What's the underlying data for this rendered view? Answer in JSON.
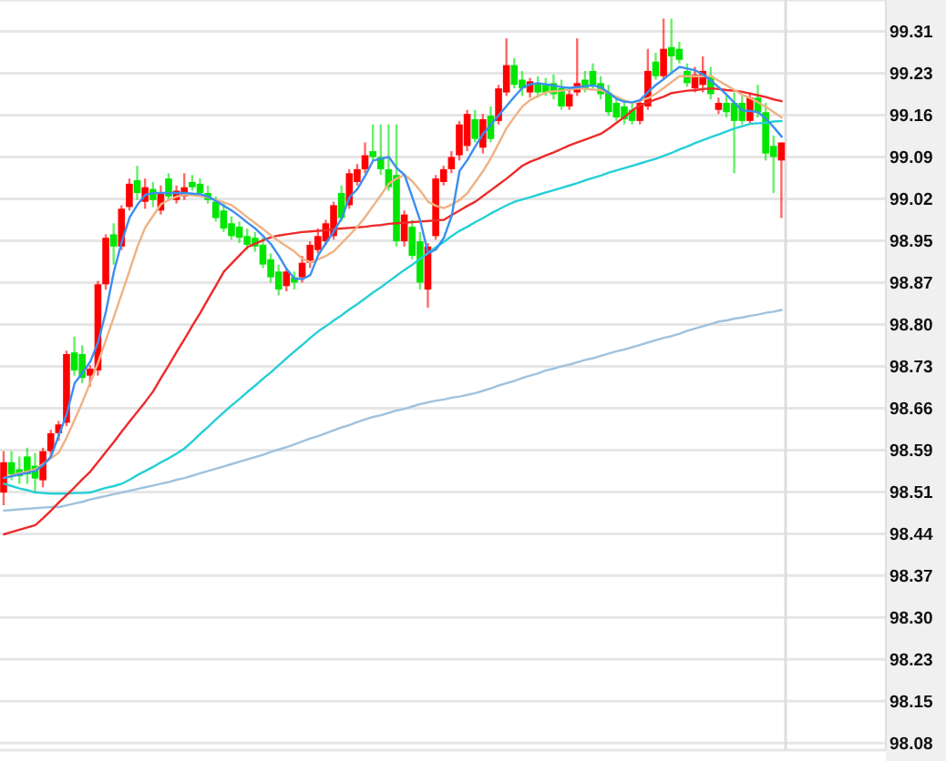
{
  "chart_data": {
    "type": "candlestick",
    "categories": [
      null,
      null,
      null,
      null,
      null,
      null,
      null,
      null,
      null,
      null,
      null,
      null,
      null,
      null,
      null,
      null,
      null,
      null,
      null,
      null,
      null,
      null,
      null,
      null,
      null,
      null,
      null,
      null,
      null,
      null,
      null,
      null,
      null,
      null,
      null,
      null,
      null,
      null,
      null,
      null,
      null,
      null,
      null,
      null,
      null,
      null,
      null,
      null,
      null,
      null,
      null,
      null,
      null,
      null,
      null,
      null,
      null,
      null,
      null,
      null,
      null,
      null,
      null,
      null,
      null,
      null,
      null,
      null,
      null,
      null,
      null,
      null,
      null,
      null,
      null,
      null,
      null,
      null,
      null,
      null,
      null,
      null,
      null,
      null,
      null,
      null,
      null,
      null,
      null,
      null,
      null,
      null,
      null,
      null,
      null,
      null,
      null,
      null,
      null,
      null
    ],
    "ohlc": [
      [
        98.513,
        98.584,
        98.491,
        98.565
      ],
      [
        98.565,
        98.584,
        98.534,
        98.544
      ],
      [
        98.553,
        98.575,
        98.528,
        98.541
      ],
      [
        98.575,
        98.59,
        98.528,
        98.544
      ],
      [
        98.559,
        98.581,
        98.513,
        98.537
      ],
      [
        98.534,
        98.59,
        98.522,
        98.584
      ],
      [
        98.584,
        98.621,
        98.575,
        98.615
      ],
      [
        98.615,
        98.636,
        98.602,
        98.63
      ],
      [
        98.633,
        98.757,
        98.627,
        98.751
      ],
      [
        98.754,
        98.781,
        98.714,
        98.723
      ],
      [
        98.751,
        98.766,
        98.701,
        98.71
      ],
      [
        98.714,
        98.732,
        98.695,
        98.726
      ],
      [
        98.723,
        98.877,
        98.714,
        98.871
      ],
      [
        98.871,
        98.957,
        98.862,
        98.951
      ],
      [
        98.957,
        98.976,
        98.905,
        98.936
      ],
      [
        98.936,
        99.007,
        98.93,
        99.001
      ],
      [
        99.004,
        99.053,
        98.998,
        99.044
      ],
      [
        99.05,
        99.075,
        99.016,
        99.028
      ],
      [
        99.013,
        99.053,
        99.001,
        99.038
      ],
      [
        99.035,
        99.047,
        99.004,
        99.016
      ],
      [
        98.998,
        99.041,
        98.991,
        99.028
      ],
      [
        99.053,
        99.062,
        99.016,
        99.022
      ],
      [
        99.016,
        99.041,
        99.01,
        99.032
      ],
      [
        99.022,
        99.062,
        99.016,
        99.038
      ],
      [
        99.047,
        99.059,
        99.032,
        99.038
      ],
      [
        99.044,
        99.053,
        99.022,
        99.028
      ],
      [
        99.028,
        99.041,
        99.01,
        99.016
      ],
      [
        99.013,
        99.022,
        98.979,
        98.985
      ],
      [
        98.998,
        99.01,
        98.961,
        98.967
      ],
      [
        98.976,
        98.988,
        98.948,
        98.954
      ],
      [
        98.97,
        98.979,
        98.942,
        98.951
      ],
      [
        98.954,
        98.967,
        98.93,
        98.939
      ],
      [
        98.951,
        98.961,
        98.927,
        98.936
      ],
      [
        98.939,
        98.951,
        98.899,
        98.905
      ],
      [
        98.914,
        98.924,
        98.874,
        98.883
      ],
      [
        98.893,
        98.905,
        98.852,
        98.862
      ],
      [
        98.868,
        98.899,
        98.859,
        98.893
      ],
      [
        98.883,
        98.893,
        98.862,
        98.874
      ],
      [
        98.883,
        98.92,
        98.874,
        98.908
      ],
      [
        98.908,
        98.945,
        98.899,
        98.939
      ],
      [
        98.93,
        98.967,
        98.924,
        98.954
      ],
      [
        98.945,
        98.982,
        98.939,
        98.976
      ],
      [
        98.954,
        99.013,
        98.948,
        99.007
      ],
      [
        99.028,
        99.041,
        98.979,
        98.985
      ],
      [
        99.007,
        99.069,
        99.001,
        99.062
      ],
      [
        99.047,
        99.078,
        99.041,
        99.069
      ],
      [
        99.069,
        99.115,
        99.062,
        99.093
      ],
      [
        99.1,
        99.146,
        99.084,
        99.09
      ],
      [
        99.09,
        99.146,
        99.059,
        99.069
      ],
      [
        99.069,
        99.146,
        99.032,
        99.038
      ],
      [
        99.059,
        99.146,
        98.936,
        98.945
      ],
      [
        98.945,
        98.998,
        98.936,
        98.991
      ],
      [
        98.97,
        98.982,
        98.914,
        98.92
      ],
      [
        98.945,
        98.961,
        98.862,
        98.874
      ],
      [
        98.862,
        98.942,
        98.831,
        98.936
      ],
      [
        98.954,
        99.059,
        98.948,
        99.053
      ],
      [
        99.047,
        99.075,
        99.041,
        99.069
      ],
      [
        99.069,
        99.1,
        99.062,
        99.09
      ],
      [
        99.093,
        99.152,
        99.084,
        99.146
      ],
      [
        99.109,
        99.171,
        99.1,
        99.164
      ],
      [
        99.155,
        99.171,
        99.115,
        99.121
      ],
      [
        99.106,
        99.164,
        99.096,
        99.155
      ],
      [
        99.161,
        99.177,
        99.115,
        99.121
      ],
      [
        99.152,
        99.214,
        99.146,
        99.208
      ],
      [
        99.201,
        99.294,
        99.195,
        99.248
      ],
      [
        99.248,
        99.26,
        99.208,
        99.214
      ],
      [
        99.223,
        99.238,
        99.195,
        99.208
      ],
      [
        99.201,
        99.226,
        99.192,
        99.22
      ],
      [
        99.217,
        99.229,
        99.192,
        99.201
      ],
      [
        99.214,
        99.226,
        99.195,
        99.201
      ],
      [
        99.217,
        99.232,
        99.189,
        99.198
      ],
      [
        99.208,
        99.223,
        99.171,
        99.177
      ],
      [
        99.177,
        99.208,
        99.171,
        99.198
      ],
      [
        99.201,
        99.294,
        99.195,
        99.217
      ],
      [
        99.223,
        99.238,
        99.201,
        99.208
      ],
      [
        99.238,
        99.251,
        99.208,
        99.214
      ],
      [
        99.217,
        99.229,
        99.189,
        99.198
      ],
      [
        99.201,
        99.214,
        99.161,
        99.167
      ],
      [
        99.183,
        99.195,
        99.152,
        99.158
      ],
      [
        99.177,
        99.189,
        99.146,
        99.155
      ],
      [
        99.171,
        99.183,
        99.146,
        99.152
      ],
      [
        99.152,
        99.189,
        99.146,
        99.183
      ],
      [
        99.177,
        99.276,
        99.171,
        99.238
      ],
      [
        99.254,
        99.269,
        99.223,
        99.229
      ],
      [
        99.229,
        99.328,
        99.223,
        99.276
      ],
      [
        99.279,
        99.328,
        99.232,
        99.263
      ],
      [
        99.276,
        99.288,
        99.251,
        99.257
      ],
      [
        99.238,
        99.251,
        99.211,
        99.217
      ],
      [
        99.208,
        99.245,
        99.201,
        99.232
      ],
      [
        99.214,
        99.263,
        99.201,
        99.238
      ],
      [
        99.229,
        99.245,
        99.189,
        99.198
      ],
      [
        99.171,
        99.192,
        99.164,
        99.183
      ],
      [
        99.183,
        99.195,
        99.158,
        99.167
      ],
      [
        99.183,
        99.201,
        99.062,
        99.152
      ],
      [
        99.183,
        99.195,
        99.146,
        99.152
      ],
      [
        99.152,
        99.201,
        99.146,
        99.192
      ],
      [
        99.192,
        99.214,
        99.158,
        99.167
      ],
      [
        99.167,
        99.183,
        99.084,
        99.096
      ],
      [
        99.109,
        99.127,
        99.028,
        99.09
      ],
      [
        99.084,
        99.115,
        98.985,
        99.115
      ]
    ],
    "colors": [
      "#ff0000",
      "#00e600",
      "#00e600",
      "#00e600",
      "#00e600",
      "#ff0000",
      "#ff0000",
      "#ff0000",
      "#ff0000",
      "#00e600",
      "#00e600",
      "#ff0000",
      "#ff0000",
      "#ff0000",
      "#00e600",
      "#ff0000",
      "#ff0000",
      "#00e600",
      "#ff0000",
      "#00e600",
      "#ff0000",
      "#00e600",
      "#ff0000",
      "#ff0000",
      "#00e600",
      "#00e600",
      "#00e600",
      "#00e600",
      "#00e600",
      "#00e600",
      "#00e600",
      "#00e600",
      "#00e600",
      "#00e600",
      "#00e600",
      "#00e600",
      "#ff0000",
      "#00e600",
      "#ff0000",
      "#ff0000",
      "#ff0000",
      "#ff0000",
      "#ff0000",
      "#00e600",
      "#ff0000",
      "#ff0000",
      "#ff0000",
      "#00e600",
      "#00e600",
      "#00e600",
      "#00e600",
      "#ff0000",
      "#00e600",
      "#00e600",
      "#ff0000",
      "#ff0000",
      "#ff0000",
      "#ff0000",
      "#ff0000",
      "#ff0000",
      "#00e600",
      "#ff0000",
      "#00e600",
      "#ff0000",
      "#ff0000",
      "#00e600",
      "#00e600",
      "#ff0000",
      "#00e600",
      "#00e600",
      "#00e600",
      "#00e600",
      "#ff0000",
      "#ff0000",
      "#00e600",
      "#00e600",
      "#00e600",
      "#00e600",
      "#00e600",
      "#00e600",
      "#00e600",
      "#ff0000",
      "#ff0000",
      "#00e600",
      "#ff0000",
      "#00e600",
      "#00e600",
      "#00e600",
      "#ff0000",
      "#ff0000",
      "#00e600",
      "#ff0000",
      "#00e600",
      "#00e600",
      "#00e600",
      "#ff0000",
      "#00e600",
      "#00e600",
      "#00e600",
      "#ff0000"
    ],
    "series": [
      {
        "type": "line",
        "color": "#9fc2de",
        "values": [
          98.482,
          98.483,
          98.484,
          98.485,
          98.486,
          98.487,
          98.488,
          98.488,
          98.491,
          98.494,
          98.497,
          98.501,
          98.504,
          98.507,
          98.51,
          98.513,
          98.516,
          98.519,
          98.522,
          98.525,
          98.528,
          98.531,
          98.535,
          98.538,
          98.542,
          98.546,
          98.55,
          98.554,
          98.558,
          98.562,
          98.566,
          98.57,
          98.574,
          98.578,
          98.583,
          98.587,
          98.591,
          98.596,
          98.601,
          98.606,
          98.61,
          98.615,
          98.62,
          98.625,
          98.629,
          98.634,
          98.639,
          98.643,
          98.646,
          98.65,
          98.654,
          98.657,
          98.661,
          98.665,
          98.668,
          98.671,
          98.673,
          98.676,
          98.678,
          98.681,
          98.684,
          98.688,
          98.692,
          98.697,
          98.701,
          98.705,
          98.71,
          98.714,
          98.718,
          98.723,
          98.726,
          98.73,
          98.733,
          98.737,
          98.741,
          98.744,
          98.748,
          98.752,
          98.756,
          98.759,
          98.763,
          98.767,
          98.771,
          98.775,
          98.779,
          98.782,
          98.786,
          98.791,
          98.795,
          98.799,
          98.803,
          98.807,
          98.809,
          98.812,
          98.814,
          98.817,
          98.819,
          98.822,
          98.824,
          98.827
        ]
      },
      {
        "type": "line",
        "color": "#25cfd6",
        "values": [
          98.528,
          98.524,
          98.52,
          98.517,
          98.513,
          98.512,
          98.511,
          98.511,
          98.511,
          98.512,
          98.512,
          98.513,
          98.517,
          98.521,
          98.524,
          98.528,
          98.535,
          98.543,
          98.55,
          98.557,
          98.565,
          98.572,
          98.58,
          98.589,
          98.601,
          98.614,
          98.626,
          98.639,
          98.651,
          98.663,
          98.674,
          98.686,
          98.697,
          98.709,
          98.72,
          98.732,
          98.744,
          98.756,
          98.767,
          98.779,
          98.79,
          98.799,
          98.809,
          98.818,
          98.828,
          98.837,
          98.847,
          98.857,
          98.866,
          98.876,
          98.886,
          98.896,
          98.905,
          98.915,
          98.925,
          98.935,
          98.944,
          98.954,
          98.963,
          98.97,
          98.978,
          98.985,
          98.993,
          99.0,
          99.007,
          99.013,
          99.017,
          99.021,
          99.025,
          99.029,
          99.033,
          99.037,
          99.041,
          99.045,
          99.05,
          99.054,
          99.058,
          99.063,
          99.067,
          99.071,
          99.075,
          99.079,
          99.083,
          99.087,
          99.092,
          99.097,
          99.103,
          99.108,
          99.114,
          99.119,
          99.124,
          99.129,
          99.134,
          99.139,
          99.143,
          99.147,
          99.148,
          99.149,
          99.151,
          99.152
        ]
      },
      {
        "type": "line",
        "color": "#ee2a2a",
        "values": [
          98.441,
          98.445,
          98.449,
          98.453,
          98.457,
          98.469,
          98.482,
          98.496,
          98.509,
          98.522,
          98.536,
          98.549,
          98.566,
          98.583,
          98.6,
          98.618,
          98.635,
          98.652,
          98.669,
          98.687,
          98.71,
          98.732,
          98.755,
          98.777,
          98.8,
          98.822,
          98.846,
          98.869,
          98.893,
          98.907,
          98.921,
          98.935,
          98.941,
          98.947,
          98.952,
          98.955,
          98.957,
          98.959,
          98.961,
          98.962,
          98.963,
          98.964,
          98.966,
          98.967,
          98.968,
          98.969,
          98.97,
          98.972,
          98.973,
          98.975,
          98.976,
          98.977,
          98.978,
          98.979,
          98.98,
          98.981,
          98.982,
          98.99,
          98.998,
          99.006,
          99.013,
          99.023,
          99.033,
          99.043,
          99.053,
          99.064,
          99.075,
          99.082,
          99.087,
          99.093,
          99.098,
          99.104,
          99.11,
          99.115,
          99.12,
          99.125,
          99.13,
          99.139,
          99.149,
          99.159,
          99.17,
          99.179,
          99.184,
          99.189,
          99.194,
          99.2,
          99.202,
          99.204,
          99.205,
          99.207,
          99.208,
          99.207,
          99.205,
          99.204,
          99.202,
          99.199,
          99.196,
          99.193,
          99.189,
          99.186
        ]
      },
      {
        "type": "line",
        "color": "#eeb283",
        "values": [
          98.538,
          98.542,
          98.546,
          98.549,
          98.553,
          98.562,
          98.572,
          98.582,
          98.608,
          98.638,
          98.669,
          98.702,
          98.737,
          98.776,
          98.815,
          98.855,
          98.895,
          98.936,
          98.969,
          98.989,
          99.009,
          99.016,
          99.022,
          99.025,
          99.024,
          99.023,
          99.021,
          99.016,
          99.012,
          99.007,
          98.997,
          98.986,
          98.976,
          98.966,
          98.955,
          98.945,
          98.936,
          98.927,
          98.915,
          98.909,
          98.914,
          98.92,
          98.928,
          98.942,
          98.956,
          98.97,
          98.987,
          99.006,
          99.025,
          99.044,
          99.053,
          99.059,
          99.048,
          99.032,
          99.013,
          99.006,
          99.002,
          99.008,
          99.016,
          99.028,
          99.047,
          99.066,
          99.088,
          99.114,
          99.14,
          99.159,
          99.177,
          99.188,
          99.195,
          99.201,
          99.203,
          99.204,
          99.206,
          99.208,
          99.207,
          99.206,
          99.205,
          99.2,
          99.193,
          99.187,
          99.183,
          99.187,
          99.191,
          99.199,
          99.209,
          99.219,
          99.229,
          99.229,
          99.229,
          99.229,
          99.229,
          99.221,
          99.213,
          99.205,
          99.197,
          99.191,
          99.184,
          99.176,
          99.167,
          99.158
        ]
      },
      {
        "type": "line",
        "color": "#3a8ff0",
        "values": [
          98.538,
          98.541,
          98.544,
          98.547,
          98.55,
          98.56,
          98.575,
          98.612,
          98.648,
          98.701,
          98.719,
          98.738,
          98.772,
          98.825,
          98.893,
          98.944,
          98.986,
          99.008,
          99.025,
          99.028,
          99.028,
          99.028,
          99.028,
          99.028,
          99.027,
          99.026,
          99.022,
          99.014,
          99.006,
          98.998,
          98.988,
          98.977,
          98.967,
          98.954,
          98.94,
          98.92,
          98.897,
          98.881,
          98.88,
          98.887,
          98.921,
          98.942,
          98.962,
          98.985,
          99.021,
          99.035,
          99.058,
          99.084,
          99.087,
          99.09,
          99.071,
          99.059,
          99.02,
          98.98,
          98.924,
          98.931,
          98.951,
          98.989,
          99.066,
          99.085,
          99.108,
          99.13,
          99.146,
          99.162,
          99.178,
          99.194,
          99.209,
          99.215,
          99.217,
          99.215,
          99.213,
          99.21,
          99.209,
          99.21,
          99.212,
          99.213,
          99.21,
          99.2,
          99.19,
          99.185,
          99.184,
          99.188,
          99.202,
          99.214,
          99.224,
          99.235,
          99.245,
          99.242,
          99.239,
          99.232,
          99.221,
          99.21,
          99.197,
          99.183,
          99.17,
          99.169,
          99.167,
          99.156,
          99.141,
          99.125
        ]
      }
    ],
    "ylim": [
      98.07,
      99.36
    ],
    "yticks": [
      {
        "value": 98.082,
        "label": "98.08"
      },
      {
        "value": 98.154,
        "label": "98.15"
      },
      {
        "value": 98.226,
        "label": "98.23"
      },
      {
        "value": 98.298,
        "label": "98.30"
      },
      {
        "value": 98.37,
        "label": "98.37"
      },
      {
        "value": 98.442,
        "label": "98.44"
      },
      {
        "value": 98.514,
        "label": "98.51"
      },
      {
        "value": 98.586,
        "label": "98.59"
      },
      {
        "value": 98.658,
        "label": "98.66"
      },
      {
        "value": 98.73,
        "label": "98.73"
      },
      {
        "value": 98.802,
        "label": "98.80"
      },
      {
        "value": 98.874,
        "label": "98.87"
      },
      {
        "value": 98.946,
        "label": "98.95"
      },
      {
        "value": 99.018,
        "label": "99.02"
      },
      {
        "value": 99.09,
        "label": "99.09"
      },
      {
        "value": 99.162,
        "label": "99.16"
      },
      {
        "value": 99.234,
        "label": "99.23"
      },
      {
        "value": 99.306,
        "label": "99.31"
      }
    ],
    "grid": "y",
    "tick_labels": "y"
  }
}
